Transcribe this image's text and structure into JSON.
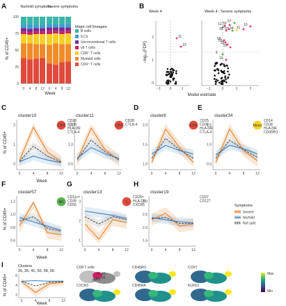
{
  "colors": {
    "severe": "#e8822a",
    "nomild": "#3b82c4",
    "notsplit": "#555555",
    "lineages": [
      "#e04a3c",
      "#f08b2a",
      "#f5d02a",
      "#c72266",
      "#7b2d8e",
      "#3f9fd1",
      "#3bb5a8"
    ]
  },
  "panelA": {
    "label": "A",
    "groups": [
      "No/mild symptoms",
      "Severe symptoms"
    ],
    "ylabel": "% of CD45+",
    "xlabel": "Week",
    "yticks": [
      "0",
      "25",
      "50",
      "75",
      "100"
    ],
    "xticks": [
      "0",
      "4",
      "8",
      "12"
    ],
    "legend_title": "Major cell lineages",
    "legend": [
      "B cells",
      "ILCs",
      "Unconventional T cells",
      "γδ T cells",
      "CD8⁺ T cells",
      "Myeloid cells",
      "CD4⁺ T cells"
    ]
  },
  "panelB": {
    "label": "B",
    "subtitles": [
      "Week 4",
      "Week 4 : Severe symptoms"
    ],
    "ylabel": "−log₁₀(FDR)",
    "xlabel": "Model estimate",
    "yticks": [
      "0",
      "1",
      "2"
    ],
    "xticks_left": [
      "−1",
      "0",
      "1"
    ],
    "xticks_right": [
      "−1",
      "0",
      "1",
      "2"
    ],
    "labels_left": [
      "11",
      "10"
    ],
    "labels_right": [
      "13",
      "50",
      "57",
      "35",
      "41",
      "37",
      "34",
      "58",
      "65",
      "26",
      "55",
      "6",
      "19",
      "11",
      "10"
    ]
  },
  "clusterPanels": [
    {
      "label": "C",
      "title": "cluster10",
      "markers": [
        "CD28",
        "CD38",
        "HLA-DR",
        "CTLA-4"
      ],
      "badge": "CD4",
      "yticks": [
        "2",
        "1",
        "0"
      ]
    },
    {
      "label": "",
      "title": "cluster11",
      "markers": [
        "CD28",
        "CTLA-4"
      ],
      "badge": "CD4",
      "yticks": [
        "1.5",
        "1.0",
        "0.5"
      ]
    },
    {
      "label": "D",
      "title": "cluster6",
      "markers": [
        "CD25",
        "CD38",
        "HLA-DR",
        "CTLA-4"
      ],
      "badge": "CD4",
      "yticks": [
        "2.0",
        "1.5",
        "1.0"
      ]
    },
    {
      "label": "E",
      "title": "cluster34",
      "markers": [
        "CD14",
        "CD38",
        "HLA-DR",
        "CD45RO"
      ],
      "badge": "Mono",
      "yticks": [
        "1.5",
        "1.0",
        "0.5"
      ]
    },
    {
      "label": "F",
      "title": "cluster57",
      "markers": [
        "CD11cᴴᶦ",
        "CD38",
        "CD56"
      ],
      "badge": "NK",
      "yticks": [
        "1.2",
        "1.0",
        "0.8",
        "0.6"
      ]
    },
    {
      "label": "G",
      "title": "cluster13",
      "markers": [
        "CD25ᴴᶦ",
        "HLA-DR",
        "CXCR5"
      ],
      "badge": "Tᵣ",
      "yticks": [
        "3",
        "2",
        "1"
      ]
    },
    {
      "label": "H",
      "title": "cluster19",
      "markers": [
        "CD27",
        "CD127"
      ],
      "badge": "",
      "yticks": [
        "3.0",
        "2.5",
        "2.0",
        "1.5"
      ]
    }
  ],
  "panelC_ylabel": "% of CD45+",
  "panelC_xlabel": "Week",
  "weekTicks": [
    "0",
    "4",
    "8",
    "12"
  ],
  "symptomsLegend": {
    "title": "Symptoms",
    "items": [
      "Severe",
      "No/mild",
      "Not split"
    ]
  },
  "panelI": {
    "label": "I",
    "title": "Clusters",
    "clusters": "26, 35, 41, 50, 58, 65",
    "ylabel": "% of CD45+",
    "xlabel": "Week",
    "yticks": [
      "6",
      "4",
      "2"
    ],
    "umaps": [
      "CD8 T cells",
      "CD45RO",
      "CCR7",
      "CXCR3",
      "CD45RA",
      "KLRG1"
    ],
    "umap_labels": [
      "41",
      "50",
      "65",
      "35",
      "58",
      "26"
    ],
    "colorbar": [
      "Max",
      "Min"
    ]
  }
}
